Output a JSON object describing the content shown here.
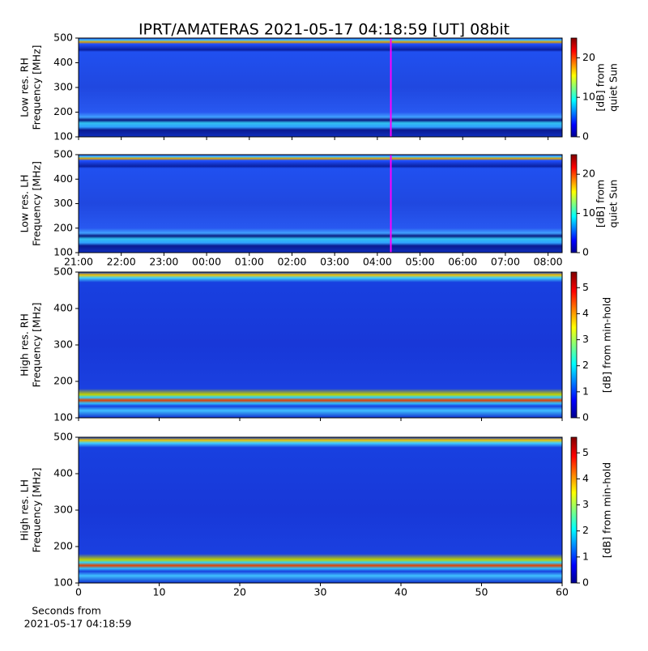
{
  "title": "IPRT/AMATERAS 2021-05-17 04:18:59 [UT]   08bit",
  "chart_data": [
    {
      "type": "heatmap",
      "ylabel": [
        "Low res. RH",
        "Frequency [MHz]"
      ],
      "ylim": [
        100,
        500
      ],
      "yticks": [
        100,
        200,
        300,
        400,
        500
      ],
      "xlim": [
        0,
        11.33
      ],
      "xticks": [
        0,
        1,
        2,
        3,
        4,
        5,
        6,
        7,
        8,
        9,
        10,
        11
      ],
      "xticklabels": false,
      "marker_x": 7.3164,
      "marker_color": "#ff00ff",
      "colorbar_label": [
        "[dB] from",
        "quiet Sun"
      ],
      "clim": [
        0,
        25
      ],
      "cticks": [
        0,
        10,
        20
      ],
      "colormap": "jet"
    },
    {
      "type": "heatmap",
      "ylabel": [
        "Low res. LH",
        "Frequency [MHz]"
      ],
      "ylim": [
        100,
        500
      ],
      "yticks": [
        100,
        200,
        300,
        400,
        500
      ],
      "xlim": [
        0,
        11.33
      ],
      "xticks": [
        {
          "value": 0,
          "label": "21:00"
        },
        {
          "value": 1,
          "label": "22:00"
        },
        {
          "value": 2,
          "label": "23:00"
        },
        {
          "value": 3,
          "label": "00:00"
        },
        {
          "value": 4,
          "label": "01:00"
        },
        {
          "value": 5,
          "label": "02:00"
        },
        {
          "value": 6,
          "label": "03:00"
        },
        {
          "value": 7,
          "label": "04:00"
        },
        {
          "value": 8,
          "label": "05:00"
        },
        {
          "value": 9,
          "label": "06:00"
        },
        {
          "value": 10,
          "label": "07:00"
        },
        {
          "value": 11,
          "label": "08:00"
        }
      ],
      "xticklabels": true,
      "marker_x": 7.3164,
      "marker_color": "#ff00ff",
      "colorbar_label": [
        "[dB] from",
        "quiet Sun"
      ],
      "clim": [
        0,
        25
      ],
      "cticks": [
        0,
        10,
        20
      ],
      "colormap": "jet"
    },
    {
      "type": "heatmap",
      "ylabel": [
        "High res. RH",
        "Frequency [MHz]"
      ],
      "ylim": [
        100,
        500
      ],
      "yticks": [
        100,
        200,
        300,
        400,
        500
      ],
      "xlim": [
        0,
        60
      ],
      "xticks": [
        0,
        10,
        20,
        30,
        40,
        50,
        60
      ],
      "xticklabels": false,
      "colorbar_label": [
        "[dB] from min-hold"
      ],
      "clim": [
        0,
        5.6
      ],
      "cticks": [
        0,
        1,
        2,
        3,
        4,
        5
      ],
      "colormap": "jet"
    },
    {
      "type": "heatmap",
      "ylabel": [
        "High res. LH",
        "Frequency [MHz]"
      ],
      "ylim": [
        100,
        500
      ],
      "yticks": [
        100,
        200,
        300,
        400,
        500
      ],
      "xlim": [
        0,
        60
      ],
      "xticks": [
        0,
        10,
        20,
        30,
        40,
        50,
        60
      ],
      "xticklabels": true,
      "xlabel": [
        "Seconds from",
        "2021-05-17 04:18:59"
      ],
      "colorbar_label": [
        "[dB] from min-hold"
      ],
      "clim": [
        0,
        5.6
      ],
      "cticks": [
        0,
        1,
        2,
        3,
        4,
        5
      ],
      "colormap": "jet"
    }
  ]
}
